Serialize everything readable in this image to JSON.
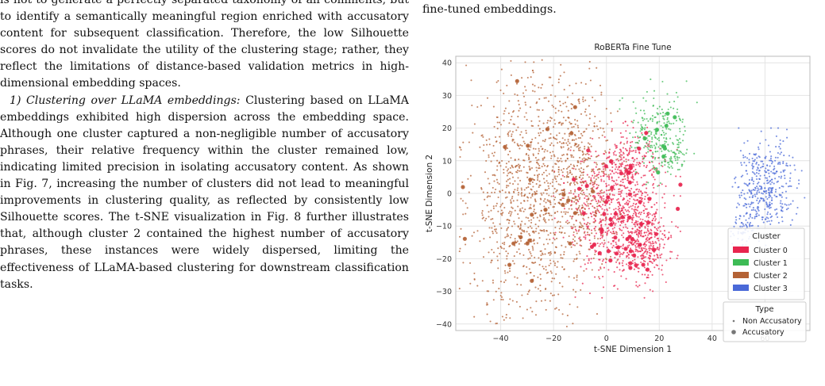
{
  "left_column": {
    "paragraphs": [
      "is not to generate a perfectly separated taxonomy of all comments, but to identify a semantically meaningful region enriched with accusatory content for subsequent classification. Therefore, the low Silhouette scores do not invalidate the utility of the clustering stage; rather, they reflect the limitations of distance-based validation metrics in high-dimensional embedding spaces."
    ],
    "subsection_heading": "1) Clustering over LLaMA embeddings:",
    "subsection_body": "Clustering based on LLaMA embeddings exhibited high dispersion across the embedding space. Although one cluster captured a non-negligible number of accusatory phrases, their relative frequency within the cluster remained low, indicating limited precision in isolating accusatory content.  As shown in Fig. 7, increasing the number of clusters did not lead to meaningful improvements in clustering quality, as reflected by consistently low Silhouette scores. The t-SNE visualization in Fig. 8 further illustrates that, although cluster 2 contained the highest number of accusatory phrases, these instances were widely dispersed, limiting the effectiveness of LLaMA-based clustering for downstream classification tasks."
  },
  "right_column": {
    "caption_tail": "fine-tuned embeddings."
  },
  "chart_data": {
    "type": "scatter",
    "title": "RoBERTa Fine Tune",
    "xlabel": "t-SNE Dimension 1",
    "ylabel": "t-SNE Dimension 2",
    "xlim": [
      -57,
      77
    ],
    "ylim": [
      -42,
      42
    ],
    "xticks": [
      -40,
      -20,
      0,
      20,
      40,
      60
    ],
    "yticks": [
      -40,
      -30,
      -20,
      -10,
      0,
      10,
      20,
      30,
      40
    ],
    "grid": true,
    "clusters": [
      {
        "name": "Cluster 0",
        "color": "#e8254f",
        "regions": [
          {
            "cx": 4,
            "cy": -5,
            "rx": 16,
            "ry": 18,
            "n": 800
          },
          {
            "cx": 15,
            "cy": -15,
            "rx": 8,
            "ry": 10,
            "n": 300
          },
          {
            "cx": 9,
            "cy": 10,
            "rx": 9,
            "ry": 8,
            "n": 160
          }
        ]
      },
      {
        "name": "Cluster 1",
        "color": "#3dbb55",
        "regions": [
          {
            "cx": 20,
            "cy": 18,
            "rx": 10,
            "ry": 12,
            "n": 230
          },
          {
            "cx": 25,
            "cy": 11,
            "rx": 6,
            "ry": 4,
            "n": 60
          }
        ]
      },
      {
        "name": "Cluster 2",
        "color": "#b46235",
        "regions": [
          {
            "cx": -28,
            "cy": 0,
            "rx": 22,
            "ry": 32,
            "n": 1100
          },
          {
            "cx": -10,
            "cy": 8,
            "rx": 12,
            "ry": 26,
            "n": 340
          }
        ]
      },
      {
        "name": "Cluster 3",
        "color": "#4a69d8",
        "regions": [
          {
            "cx": 60,
            "cy": 2,
            "rx": 10,
            "ry": 12,
            "n": 400
          },
          {
            "cx": 52,
            "cy": -10,
            "rx": 4,
            "ry": 5,
            "n": 60
          }
        ]
      }
    ],
    "accusatory_density": {
      "Cluster 0": 0.05,
      "Cluster 1": 0.06,
      "Cluster 2": 0.012,
      "Cluster 3": 0.0
    },
    "legend_cluster": {
      "title": "Cluster",
      "placement": "right",
      "entries": [
        "Cluster 0",
        "Cluster 1",
        "Cluster 2",
        "Cluster 3"
      ]
    },
    "legend_type": {
      "title": "Type",
      "placement": "bottom-right",
      "entries": [
        "Non Accusatory",
        "Accusatory"
      ]
    }
  }
}
